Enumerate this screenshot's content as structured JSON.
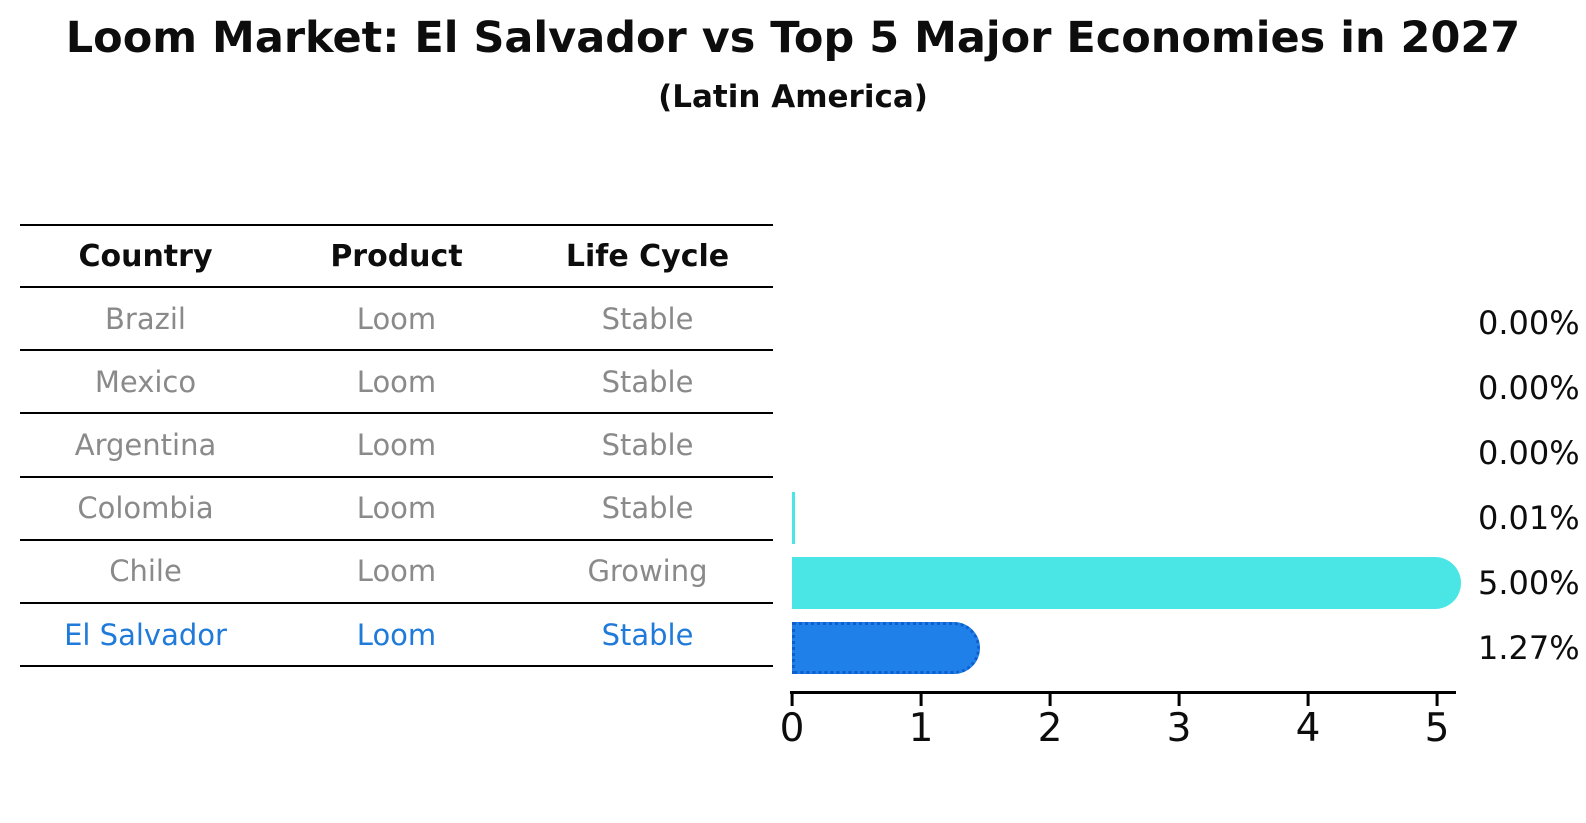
{
  "page": {
    "title": "Loom Market: El Salvador vs Top 5 Major Economies in 2027",
    "subtitle": "(Latin America)"
  },
  "table": {
    "headers": [
      "Country",
      "Product",
      "Life Cycle"
    ],
    "rows": [
      {
        "country": "Brazil",
        "product": "Loom",
        "life_cycle": "Stable",
        "highlight": false
      },
      {
        "country": "Mexico",
        "product": "Loom",
        "life_cycle": "Stable",
        "highlight": false
      },
      {
        "country": "Argentina",
        "product": "Loom",
        "life_cycle": "Stable",
        "highlight": false
      },
      {
        "country": "Colombia",
        "product": "Loom",
        "life_cycle": "Stable",
        "highlight": false
      },
      {
        "country": "Chile",
        "product": "Loom",
        "life_cycle": "Growing",
        "highlight": false
      },
      {
        "country": "El Salvador",
        "product": "Loom",
        "life_cycle": "Stable",
        "highlight": true
      }
    ]
  },
  "chart_data": {
    "type": "bar",
    "orientation": "horizontal",
    "title": "Loom Market: El Salvador vs Top 5 Major Economies in 2027",
    "subtitle": "(Latin America)",
    "categories": [
      "Brazil",
      "Mexico",
      "Argentina",
      "Colombia",
      "Chile",
      "El Salvador"
    ],
    "values": [
      0.0,
      0.0,
      0.0,
      0.01,
      5.0,
      1.27
    ],
    "value_labels": [
      "0.00%",
      "0.00%",
      "0.00%",
      "0.01%",
      "5.00%",
      "1.27%"
    ],
    "unit": "percent",
    "xlim": [
      0,
      5
    ],
    "x_ticks": [
      0,
      1,
      2,
      3,
      4,
      5
    ],
    "highlight_index": 5,
    "legend": "none",
    "grid": false
  },
  "colors": {
    "background": "#FFFFFF",
    "line": "#000000",
    "heading_text": "#0D0D0D",
    "row_text": "#8A8A8A",
    "highlight_text": "#1F7AD9",
    "bar_default": "#4AE6E6",
    "bar_highlight": "#1E80E8",
    "bar_highlight_border": "#0D5FD0"
  }
}
